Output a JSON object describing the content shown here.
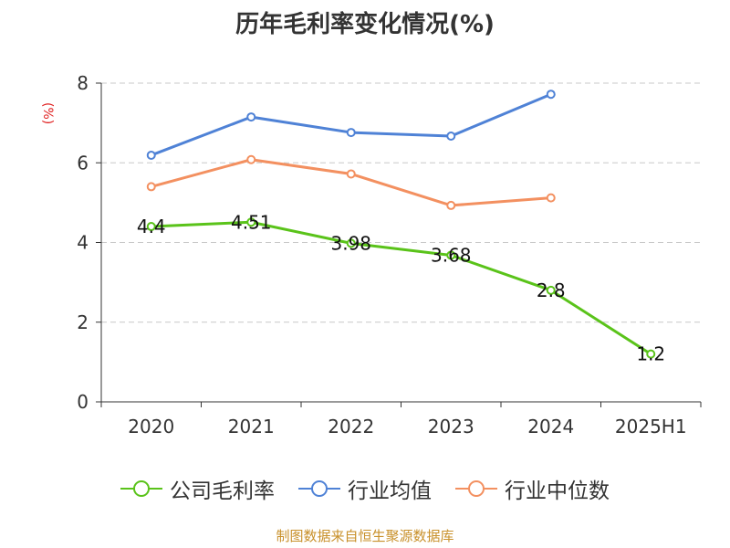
{
  "title": "历年毛利率变化情况(%)",
  "unit_label": "(%)",
  "source": "制图数据来自恒生聚源数据库",
  "chart_data": {
    "type": "line",
    "categories": [
      "2020",
      "2021",
      "2022",
      "2023",
      "2024",
      "2025H1"
    ],
    "ylim": [
      0,
      8
    ],
    "yticks": [
      0,
      2,
      4,
      6,
      8
    ],
    "grid": true,
    "legend_position": "bottom",
    "series": [
      {
        "name": "公司毛利率",
        "color": "#5ac31a",
        "values": [
          4.4,
          4.51,
          3.98,
          3.68,
          2.8,
          1.2
        ],
        "labels": [
          "4.4",
          "4.51",
          "3.98",
          "3.68",
          "2.8",
          "1.2"
        ]
      },
      {
        "name": "行业均值",
        "color": "#4f82d6",
        "values": [
          6.19,
          7.15,
          6.76,
          6.67,
          7.72,
          null
        ]
      },
      {
        "name": "行业中位数",
        "color": "#f39060",
        "values": [
          5.4,
          6.08,
          5.72,
          4.93,
          5.12,
          null
        ]
      }
    ]
  }
}
